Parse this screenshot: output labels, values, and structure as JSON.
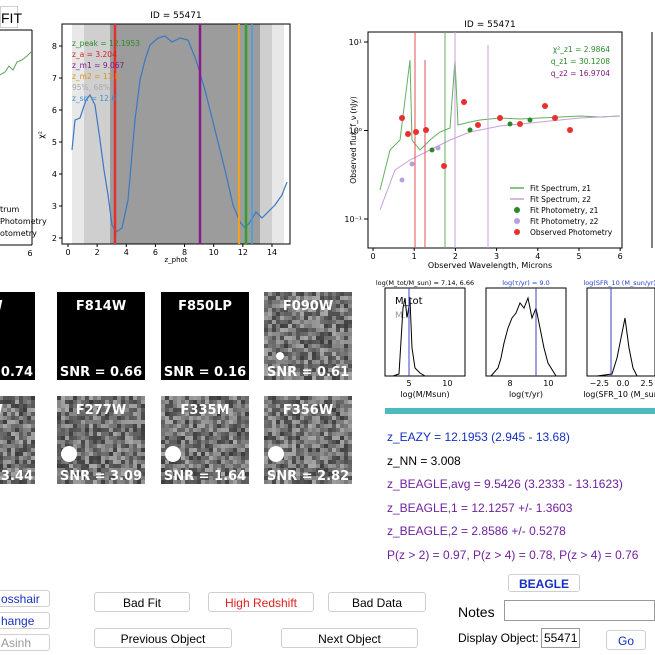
{
  "header": {
    "fit_button": "FIT"
  },
  "left_plot": {
    "legend": [
      "trum",
      "Photometry",
      "otometry"
    ],
    "xtick": "6"
  },
  "chi2_plot": {
    "title": "ID = 55471",
    "ylabel": "χ²",
    "xlabel": "z_phot",
    "yticks": [
      "2",
      "3",
      "4",
      "5",
      "6",
      "7",
      "8"
    ],
    "xticks": [
      "0",
      "2",
      "4",
      "6",
      "8",
      "10",
      "12",
      "14"
    ],
    "legend": [
      "z_peak = 12.1953",
      "z_a = 3.204",
      "z_m1 = 9.067",
      "z_m2 = 11.8",
      "95%, 68%",
      "z_sn = 12.6"
    ]
  },
  "sed_plot": {
    "title": "ID = 55471",
    "ylabel": "Observed flux, f_ν (nJy)",
    "xlabel": "Observed Wavelength, Microns",
    "yticks": [
      "10¹",
      "10⁰",
      "10⁻¹"
    ],
    "xticks": [
      "0",
      "1",
      "2",
      "3",
      "4",
      "5",
      "6"
    ],
    "stats": [
      "χ²_z1 = 2.9864",
      "q_z1 = 30.1208",
      "q_z2 = 16.9704"
    ],
    "legend": [
      "Fit Spectrum, z1",
      "Fit Spectrum, z2",
      "Fit Photometry, z1",
      "Fit Photometry, z2",
      "Observed Photometry"
    ]
  },
  "cutouts": [
    {
      "filter": "5W",
      "snr": "= 0.74"
    },
    {
      "filter": "F814W",
      "snr": "SNR = 0.66"
    },
    {
      "filter": "F850LP",
      "snr": "SNR = 0.16"
    },
    {
      "filter": "F090W",
      "snr": "SNR = 0.61"
    },
    {
      "filter": "0W",
      "snr": "= 3.44"
    },
    {
      "filter": "F277W",
      "snr": "SNR = 3.09"
    },
    {
      "filter": "F335M",
      "snr": "SNR = 1.64"
    },
    {
      "filter": "F356W",
      "snr": "SNR = 2.82"
    }
  ],
  "posteriors": [
    {
      "title": "log(M_tot/M_sun) = 7.14, 6.66",
      "xlabel": "log(M/Msun)",
      "xticks": [
        "5",
        "10"
      ],
      "inset": [
        "M_tot",
        "M..."
      ]
    },
    {
      "title": "log(τ/yr) = 9.0",
      "xlabel": "log(τ/yr)",
      "xticks": [
        "8",
        "10"
      ]
    },
    {
      "title": "log(SFR_10 (M_sun/yr))",
      "xlabel": "log(SFR_10 (M_sun",
      "xticks": [
        "−2.5",
        "0.0",
        "2.5"
      ]
    }
  ],
  "results": [
    "z_EAZY = 12.1953 (2.945 - 13.68)",
    "z_NN = 3.008",
    "z_BEAGLE,avg = 9.5426 (3.2333 - 13.1623)",
    "z_BEAGLE,1 = 12.1257 +/- 1.3603",
    "z_BEAGLE,2 = 2.8586 +/- 0.5278",
    "P(z > 2) = 0.97, P(z > 4) = 0.78, P(z > 4) = 0.76"
  ],
  "buttons": {
    "beagle": "BEAGLE",
    "crosshair": "osshair",
    "change": "hange",
    "asinh": "Asinh",
    "bad_fit": "Bad Fit",
    "high_redshift": "High Redshift",
    "bad_data": "Bad Data",
    "previous": "Previous Object",
    "next": "Next Object",
    "go": "Go"
  },
  "notes_label": "Notes",
  "display_label": "Display Object:",
  "display_value": "55471"
}
